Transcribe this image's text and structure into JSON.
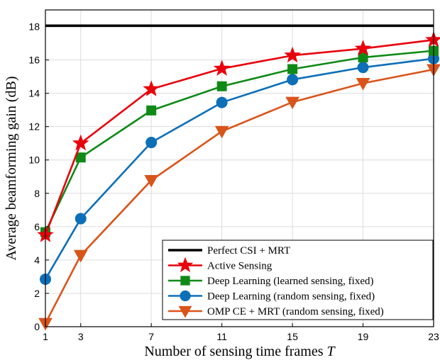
{
  "chart_data": {
    "type": "line",
    "title": "",
    "xlabel": "Number of sensing time frames",
    "xlabel_symbol": "T",
    "ylabel": "Average beamforming gain (dB)",
    "x": [
      1,
      3,
      7,
      11,
      15,
      19,
      23
    ],
    "xticks": [
      "1",
      "3",
      "7",
      "11",
      "15",
      "19",
      "23"
    ],
    "xlim": [
      1,
      23
    ],
    "yticks": [
      "0",
      "2",
      "4",
      "6",
      "8",
      "10",
      "12",
      "14",
      "16",
      "18"
    ],
    "ylim": [
      0,
      19
    ],
    "grid": true,
    "legend_position": "bottom-right",
    "series": [
      {
        "name": "Perfect CSI + MRT",
        "color": "#000000",
        "marker": "none",
        "values": [
          18.05,
          18.05,
          18.05,
          18.05,
          18.05,
          18.05,
          18.05
        ]
      },
      {
        "name": "Active Sensing",
        "color": "#e8000b",
        "marker": "star",
        "values": [
          5.5,
          11.0,
          14.25,
          15.48,
          16.27,
          16.68,
          17.2
        ]
      },
      {
        "name": "Deep Learning (learned sensing, fixed)",
        "color": "#0f8a16",
        "marker": "square",
        "values": [
          5.67,
          10.15,
          12.97,
          14.42,
          15.45,
          16.15,
          16.55
        ]
      },
      {
        "name": "Deep Learning (random sensing, fixed)",
        "color": "#0d6fb8",
        "marker": "circle",
        "values": [
          2.85,
          6.48,
          11.05,
          13.45,
          14.82,
          15.55,
          16.08
        ]
      },
      {
        "name": "OMP CE + MRT (random sensing, fixed)",
        "color": "#d9541a",
        "marker": "triangle-down",
        "values": [
          0.2,
          4.28,
          8.78,
          11.72,
          13.47,
          14.6,
          15.43
        ]
      }
    ]
  }
}
